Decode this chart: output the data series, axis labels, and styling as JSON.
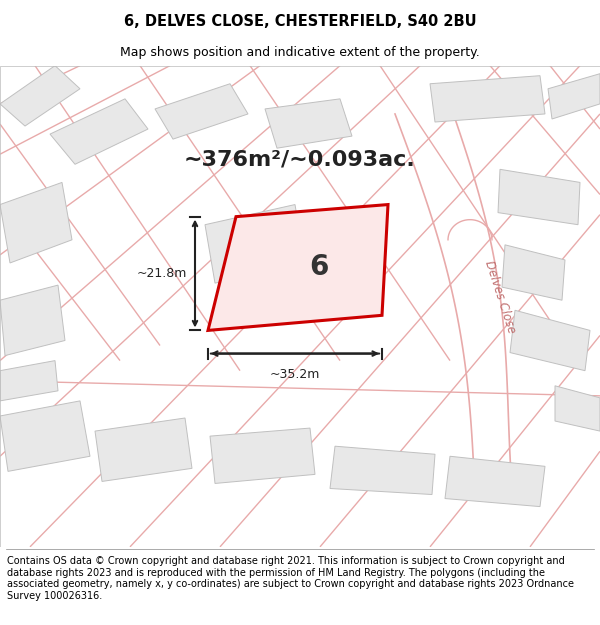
{
  "title_line1": "6, DELVES CLOSE, CHESTERFIELD, S40 2BU",
  "title_line2": "Map shows position and indicative extent of the property.",
  "footer_text": "Contains OS data © Crown copyright and database right 2021. This information is subject to Crown copyright and database rights 2023 and is reproduced with the permission of HM Land Registry. The polygons (including the associated geometry, namely x, y co-ordinates) are subject to Crown copyright and database rights 2023 Ordnance Survey 100026316.",
  "area_text": "~376m²/~0.093ac.",
  "width_label": "~35.2m",
  "height_label": "~21.8m",
  "property_number": "6",
  "bg_color": "#ffffff",
  "building_fill": "#e8e8e8",
  "building_edge": "#c0c0c0",
  "highlight_fill": "#fce8e8",
  "highlight_edge": "#cc0000",
  "road_line_color": "#e8aaaa",
  "road_label_color": "#c07070",
  "street_name": "Delves Close",
  "dim_color": "#222222",
  "title_fontsize": 10.5,
  "subtitle_fontsize": 9,
  "footer_fontsize": 7.0,
  "area_fontsize": 16,
  "number_fontsize": 20,
  "dim_fontsize": 9,
  "street_fontsize": 8.5
}
